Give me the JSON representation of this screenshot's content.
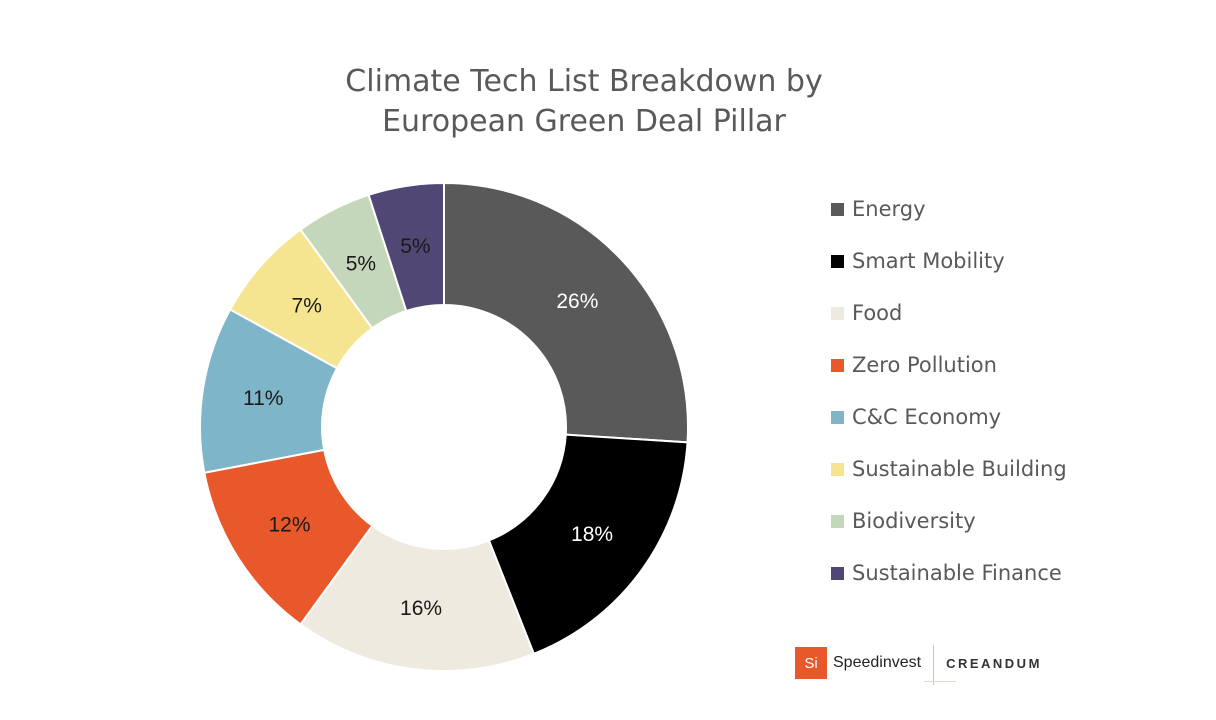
{
  "chart_data": {
    "type": "pie",
    "donut": true,
    "title_lines": [
      "Climate Tech List Breakdown by",
      "European Green Deal Pillar"
    ],
    "legend_position": "right",
    "slices": [
      {
        "label": "Energy",
        "value": 26,
        "display": "26%",
        "color": "#595959",
        "label_color": "#ffffff"
      },
      {
        "label": "Smart Mobility",
        "value": 18,
        "display": "18%",
        "color": "#000000",
        "label_color": "#ffffff"
      },
      {
        "label": "Food",
        "value": 16,
        "display": "16%",
        "color": "#eeeae0",
        "label_color": "#1a1a1a"
      },
      {
        "label": "Zero Pollution",
        "value": 12,
        "display": "12%",
        "color": "#e8582a",
        "label_color": "#1a1a1a"
      },
      {
        "label": "C&C Economy",
        "value": 11,
        "display": "11%",
        "color": "#7fb5c9",
        "label_color": "#1a1a1a"
      },
      {
        "label": "Sustainable Building",
        "value": 7,
        "display": "7%",
        "color": "#f5e490",
        "label_color": "#1a1a1a"
      },
      {
        "label": "Biodiversity",
        "value": 5,
        "display": "5%",
        "color": "#c5d7bb",
        "label_color": "#1a1a1a"
      },
      {
        "label": "Sustainable Finance",
        "value": 5,
        "display": "5%",
        "color": "#514775",
        "label_color": "#1a1a1a"
      }
    ]
  },
  "logos": {
    "speedinvest_badge": "Si",
    "speedinvest_name": "Speedinvest",
    "creandum_name": "CREANDUM",
    "speedinvest_color": "#e8582a"
  }
}
